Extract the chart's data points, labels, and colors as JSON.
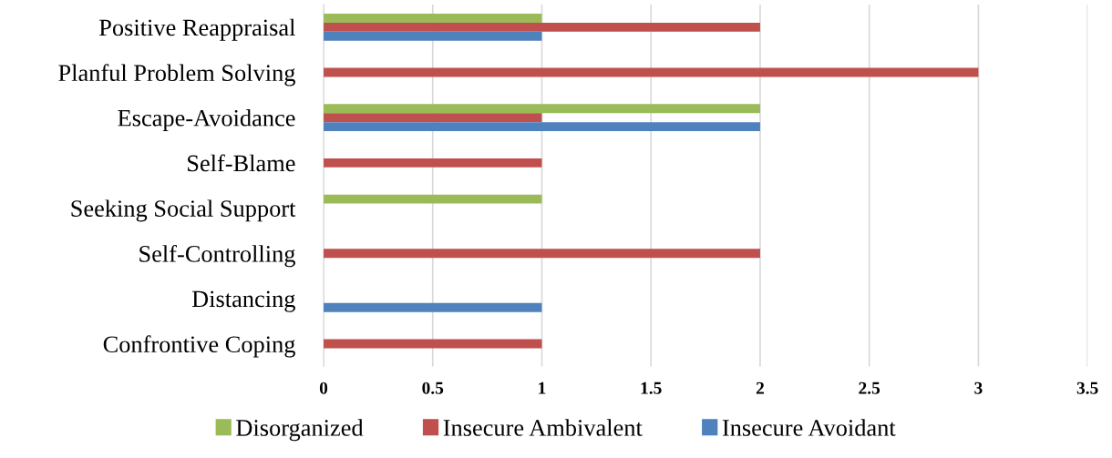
{
  "chart_data": {
    "type": "bar",
    "orientation": "horizontal",
    "categories": [
      "Positive Reappraisal",
      "Planful Problem Solving",
      "Escape-Avoidance",
      "Self-Blame",
      "Seeking Social Support",
      "Self-Controlling",
      "Distancing",
      "Confrontive Coping"
    ],
    "series": [
      {
        "name": "Disorganized",
        "color": "#9bbb59",
        "values": [
          1,
          null,
          2,
          null,
          1,
          null,
          null,
          null
        ]
      },
      {
        "name": "Insecure Ambivalent",
        "color": "#c0504d",
        "values": [
          2,
          3,
          1,
          1,
          null,
          2,
          null,
          1
        ]
      },
      {
        "name": "Insecure Avoidant",
        "color": "#4f81bd",
        "values": [
          1,
          null,
          2,
          null,
          null,
          null,
          1,
          null
        ]
      }
    ],
    "xlim": [
      0,
      3.5
    ],
    "xticks": [
      0,
      0.5,
      1,
      1.5,
      2,
      2.5,
      3,
      3.5
    ],
    "grid": "x",
    "legend": "bottom"
  }
}
